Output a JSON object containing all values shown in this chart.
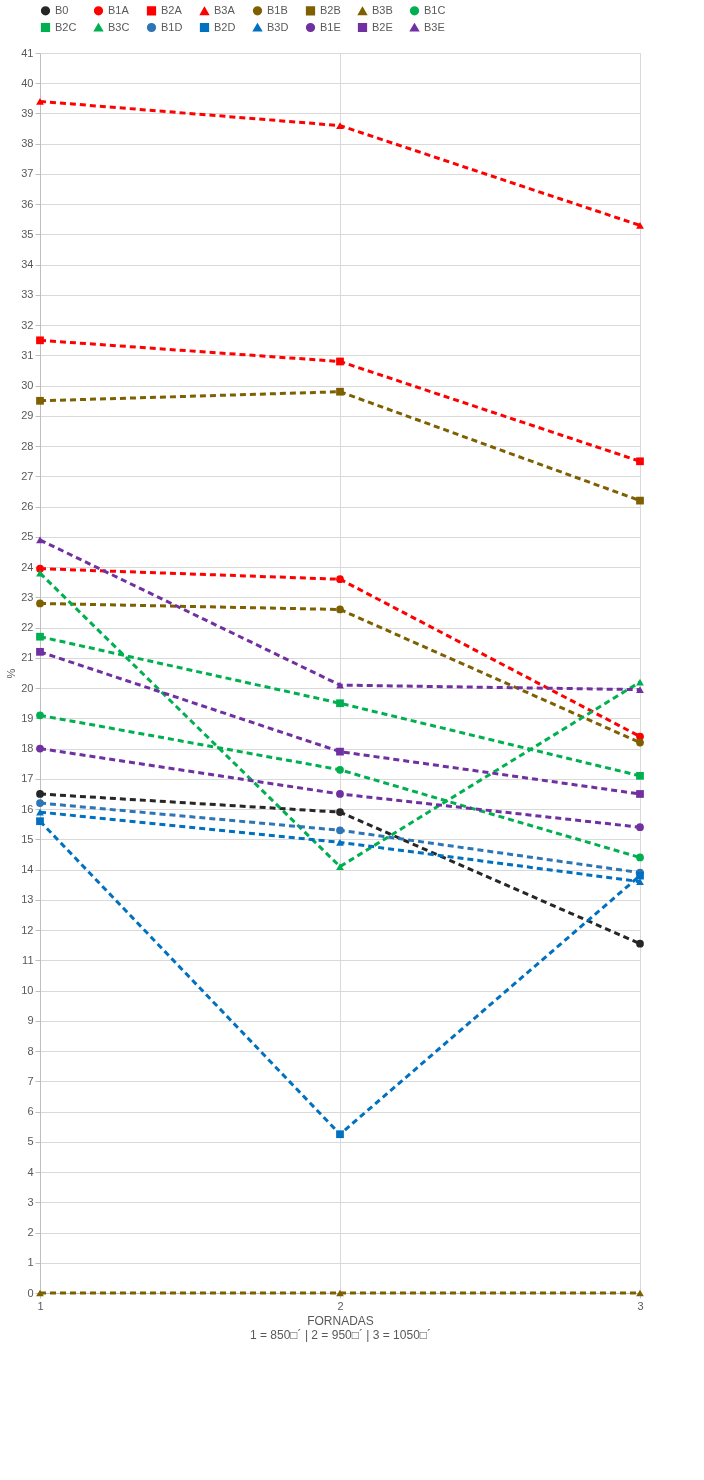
{
  "chart_data": {
    "type": "line",
    "xlabel": "FORNADAS",
    "ylabel": "%",
    "annotations": [
      "1 = 850□´ | 2 = 950□´ | 3 = 1050□´"
    ],
    "categories": [
      "1",
      "2",
      "3"
    ],
    "ylim": [
      0,
      41
    ],
    "yticks": [
      0,
      1,
      2,
      3,
      4,
      5,
      6,
      7,
      8,
      9,
      10,
      11,
      12,
      13,
      14,
      15,
      16,
      17,
      18,
      19,
      20,
      21,
      22,
      23,
      24,
      25,
      26,
      27,
      28,
      29,
      30,
      31,
      32,
      33,
      34,
      35,
      36,
      37,
      38,
      39,
      40,
      41
    ],
    "grid": true,
    "legend": "top",
    "line_style": "dashed",
    "series": [
      {
        "name": "B0",
        "color": "#262626",
        "marker": "circle",
        "values": [
          16.5,
          15.9,
          11.55
        ]
      },
      {
        "name": "B1A",
        "color": "#ff0000",
        "marker": "circle",
        "values": [
          23.95,
          23.6,
          18.4
        ]
      },
      {
        "name": "B2A",
        "color": "#ff0000",
        "marker": "square",
        "values": [
          31.5,
          30.8,
          27.5
        ]
      },
      {
        "name": "B3A",
        "color": "#ff0000",
        "marker": "triangle",
        "values": [
          39.4,
          38.6,
          35.3
        ]
      },
      {
        "name": "B1B",
        "color": "#7f6000",
        "marker": "circle",
        "values": [
          22.8,
          22.6,
          18.2
        ]
      },
      {
        "name": "B2B",
        "color": "#7f6000",
        "marker": "square",
        "values": [
          29.5,
          29.8,
          26.2
        ]
      },
      {
        "name": "B3B",
        "color": "#7f6000",
        "marker": "triangle",
        "values": [
          0,
          0,
          0
        ]
      },
      {
        "name": "B1C",
        "color": "#00b050",
        "marker": "circle",
        "values": [
          19.1,
          17.3,
          14.4
        ]
      },
      {
        "name": "B2C",
        "color": "#00b050",
        "marker": "square",
        "values": [
          21.7,
          19.5,
          17.1
        ]
      },
      {
        "name": "B3C",
        "color": "#00b050",
        "marker": "triangle",
        "values": [
          23.8,
          14.1,
          20.2
        ]
      },
      {
        "name": "B1D",
        "color": "#2e75b6",
        "marker": "circle",
        "values": [
          16.2,
          15.3,
          13.9
        ]
      },
      {
        "name": "B2D",
        "color": "#0070c0",
        "marker": "square",
        "values": [
          15.6,
          5.25,
          13.8
        ]
      },
      {
        "name": "B3D",
        "color": "#0070c0",
        "marker": "triangle",
        "values": [
          15.9,
          14.9,
          13.6
        ]
      },
      {
        "name": "B1E",
        "color": "#7030a0",
        "marker": "circle",
        "values": [
          18.0,
          16.5,
          15.4
        ]
      },
      {
        "name": "B2E",
        "color": "#7030a0",
        "marker": "square",
        "values": [
          21.2,
          17.9,
          16.5
        ]
      },
      {
        "name": "B3E",
        "color": "#7030a0",
        "marker": "triangle",
        "values": [
          24.9,
          20.1,
          19.95
        ]
      }
    ]
  }
}
